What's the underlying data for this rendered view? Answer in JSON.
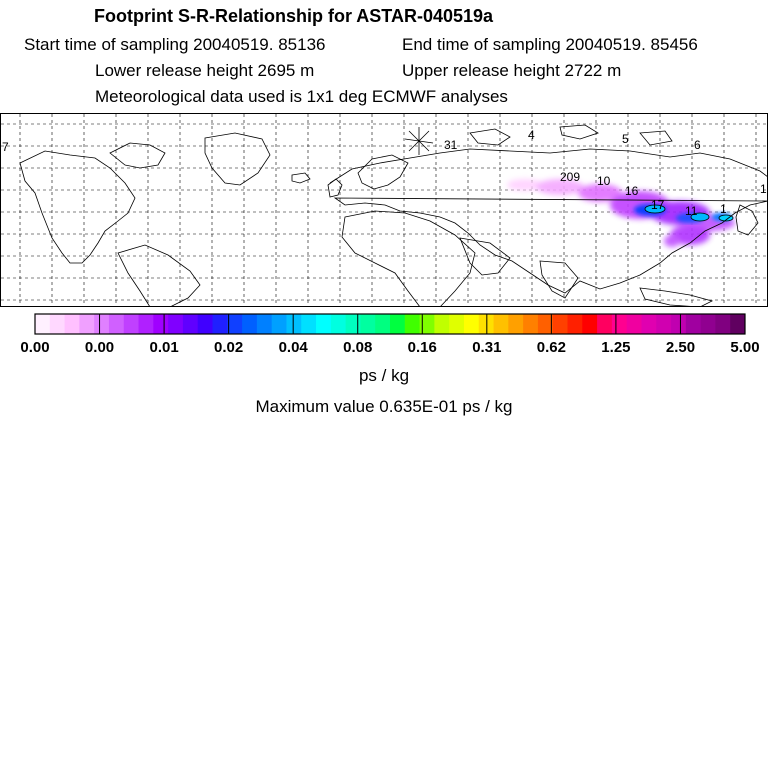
{
  "header": {
    "title": "Footprint S-R-Relationship for ASTAR-040519a",
    "start_time": "Start time of sampling 20040519. 85136",
    "end_time": "End time of sampling 20040519. 85456",
    "lower_height": "Lower release height 2695 m",
    "upper_height": "Upper release height 2722 m",
    "met_data": "Meteorological data used is 1x1 deg ECMWF analyses"
  },
  "chart_data": {
    "type": "heatmap",
    "map_labels": [
      "7",
      "4",
      "5",
      "6",
      "1",
      "209",
      "10",
      "16",
      "17",
      "11",
      "1",
      "31"
    ],
    "colorbar": {
      "ticks": [
        "0.00",
        "0.00",
        "0.01",
        "0.02",
        "0.04",
        "0.08",
        "0.16",
        "0.31",
        "0.62",
        "1.25",
        "2.50",
        "5.00"
      ],
      "colors": [
        "#fff0ff",
        "#ffd8ff",
        "#ffc0ff",
        "#f0a0ff",
        "#e080ff",
        "#d060ff",
        "#c040ff",
        "#b020ff",
        "#a000ff",
        "#8000ff",
        "#6000ff",
        "#4000ff",
        "#2020ff",
        "#1040ff",
        "#0060ff",
        "#0080ff",
        "#00a0ff",
        "#00c0ff",
        "#00e0ff",
        "#00ffff",
        "#00ffe0",
        "#00ffc0",
        "#00ffa0",
        "#00ff80",
        "#00ff40",
        "#40ff00",
        "#80ff00",
        "#c0ff00",
        "#e0ff00",
        "#ffff00",
        "#ffe000",
        "#ffc000",
        "#ffa000",
        "#ff8000",
        "#ff6000",
        "#ff4000",
        "#ff2000",
        "#ff0000",
        "#ff0060",
        "#ff0090",
        "#f000a0",
        "#e000b0",
        "#d000b0",
        "#c000b0",
        "#a000a0",
        "#900090",
        "#800080",
        "#600060"
      ],
      "unit": "ps / kg"
    },
    "maximum_value": "Maximum value  0.635E-01 ps / kg"
  }
}
